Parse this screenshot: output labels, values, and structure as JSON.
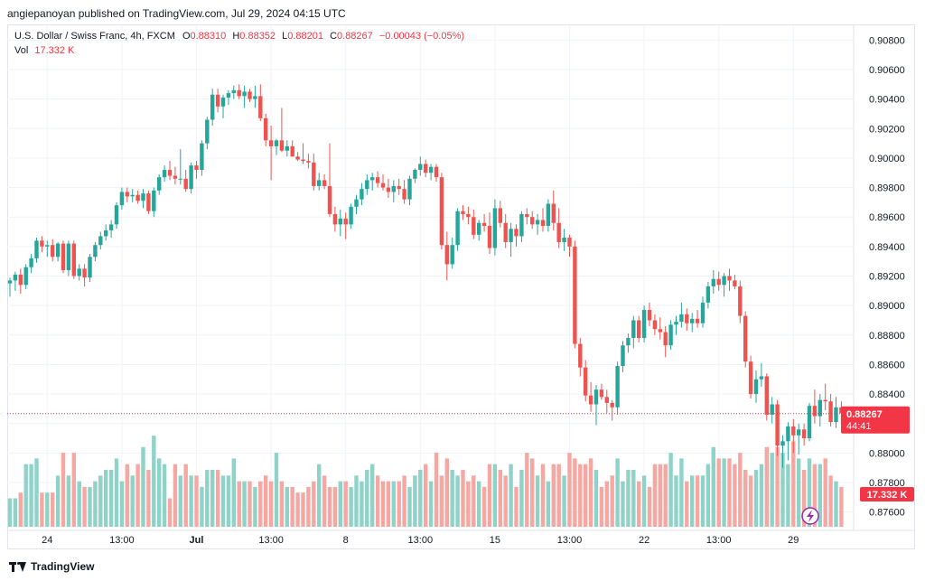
{
  "header": {
    "text": "angiepanoyan published on TradingView.com, Jul 29, 2024 04:15 UTC"
  },
  "legend": {
    "title": "U.S. Dollar / Swiss Franc, 4h, FXCM",
    "o_label": "O",
    "o_value": "0.88310",
    "h_label": "H",
    "h_value": "0.88352",
    "l_label": "L",
    "l_value": "0.88201",
    "c_label": "C",
    "c_value": "0.88267",
    "change": "−0.00043 (−0.05%)",
    "vol_label": "Vol",
    "vol_value": "17.332 K"
  },
  "price_tag": {
    "price": "0.88267",
    "countdown": "44:41",
    "value": 0.88267
  },
  "vol_tag": {
    "text": "17.332 K"
  },
  "footer": {
    "brand": "TradingView"
  },
  "colors": {
    "up": "#26a69a",
    "down": "#ef5350",
    "vol_up": "#8fd2c7",
    "vol_down": "#f6a7a2",
    "grid": "#f0f3fa"
  },
  "chart_data": {
    "type": "candlestick",
    "symbol": "U.S. Dollar / Swiss Franc",
    "interval": "4h",
    "ylim": [
      0.875,
      0.909
    ],
    "y_ticks": [
      "0.90800",
      "0.90600",
      "0.90400",
      "0.90200",
      "0.90000",
      "0.89800",
      "0.89600",
      "0.89400",
      "0.89200",
      "0.89000",
      "0.88800",
      "0.88600",
      "0.88400",
      "0.88200",
      "0.88000",
      "0.87800",
      "0.87600"
    ],
    "x_ticks": [
      {
        "label": "24",
        "bar": 7,
        "bold": false
      },
      {
        "label": "13:00",
        "bar": 21,
        "bold": false
      },
      {
        "label": "Jul",
        "bar": 35,
        "bold": true
      },
      {
        "label": "13:00",
        "bar": 49,
        "bold": false
      },
      {
        "label": "8",
        "bar": 63,
        "bold": false
      },
      {
        "label": "13:00",
        "bar": 77,
        "bold": false
      },
      {
        "label": "15",
        "bar": 91,
        "bold": false
      },
      {
        "label": "13:00",
        "bar": 105,
        "bold": false
      },
      {
        "label": "22",
        "bar": 119,
        "bold": false
      },
      {
        "label": "13:00",
        "bar": 133,
        "bold": false
      },
      {
        "label": "29",
        "bar": 147,
        "bold": false
      }
    ],
    "candles": [
      [
        0.8915,
        0.8919,
        0.8906,
        0.8917
      ],
      [
        0.8917,
        0.8923,
        0.891,
        0.8921
      ],
      [
        0.8921,
        0.8925,
        0.8908,
        0.8914
      ],
      [
        0.8914,
        0.8928,
        0.8911,
        0.8926
      ],
      [
        0.8926,
        0.8935,
        0.8922,
        0.8932
      ],
      [
        0.8932,
        0.8946,
        0.8929,
        0.8944
      ],
      [
        0.8944,
        0.8947,
        0.8936,
        0.894
      ],
      [
        0.894,
        0.8944,
        0.8933,
        0.8941
      ],
      [
        0.8941,
        0.8945,
        0.893,
        0.8933
      ],
      [
        0.8933,
        0.8943,
        0.893,
        0.8942
      ],
      [
        0.8942,
        0.8944,
        0.8922,
        0.8924
      ],
      [
        0.8924,
        0.8944,
        0.892,
        0.8942
      ],
      [
        0.8942,
        0.8944,
        0.8918,
        0.892
      ],
      [
        0.892,
        0.8928,
        0.8917,
        0.8925
      ],
      [
        0.8925,
        0.8928,
        0.8913,
        0.8919
      ],
      [
        0.8919,
        0.8935,
        0.8916,
        0.8933
      ],
      [
        0.8933,
        0.8943,
        0.893,
        0.8941
      ],
      [
        0.8941,
        0.895,
        0.8938,
        0.8947
      ],
      [
        0.8947,
        0.8955,
        0.8944,
        0.8951
      ],
      [
        0.8951,
        0.8958,
        0.8946,
        0.8955
      ],
      [
        0.8955,
        0.897,
        0.8952,
        0.8968
      ],
      [
        0.8968,
        0.898,
        0.8965,
        0.8977
      ],
      [
        0.8977,
        0.898,
        0.897,
        0.8974
      ],
      [
        0.8974,
        0.8979,
        0.897,
        0.8975
      ],
      [
        0.8975,
        0.8978,
        0.8969,
        0.8971
      ],
      [
        0.8971,
        0.8979,
        0.8966,
        0.8976
      ],
      [
        0.8976,
        0.8978,
        0.8962,
        0.8964
      ],
      [
        0.8964,
        0.898,
        0.896,
        0.8978
      ],
      [
        0.8978,
        0.8989,
        0.8975,
        0.8987
      ],
      [
        0.8987,
        0.8995,
        0.8984,
        0.8992
      ],
      [
        0.8992,
        0.8998,
        0.8985,
        0.8988
      ],
      [
        0.8988,
        0.8994,
        0.8982,
        0.8986
      ],
      [
        0.8986,
        0.9006,
        0.8982,
        0.8986
      ],
      [
        0.8986,
        0.8992,
        0.8977,
        0.8979
      ],
      [
        0.8979,
        0.8997,
        0.8976,
        0.8995
      ],
      [
        0.8995,
        0.8998,
        0.8986,
        0.8992
      ],
      [
        0.8992,
        0.9012,
        0.8988,
        0.901
      ],
      [
        0.901,
        0.9028,
        0.9006,
        0.9026
      ],
      [
        0.9026,
        0.9047,
        0.9022,
        0.9043
      ],
      [
        0.9043,
        0.9047,
        0.9031,
        0.9035
      ],
      [
        0.9035,
        0.9043,
        0.9027,
        0.9041
      ],
      [
        0.9041,
        0.9046,
        0.9036,
        0.9044
      ],
      [
        0.9044,
        0.9049,
        0.904,
        0.9046
      ],
      [
        0.9046,
        0.905,
        0.904,
        0.9042
      ],
      [
        0.9042,
        0.9049,
        0.9034,
        0.9045
      ],
      [
        0.9045,
        0.9047,
        0.9038,
        0.904
      ],
      [
        0.904,
        0.9049,
        0.9034,
        0.9042
      ],
      [
        0.9042,
        0.905,
        0.9025,
        0.9027
      ],
      [
        0.9027,
        0.903,
        0.9008,
        0.9012
      ],
      [
        0.9012,
        0.9022,
        0.8985,
        0.9008
      ],
      [
        0.9008,
        0.9013,
        0.9002,
        0.9012
      ],
      [
        0.9012,
        0.9034,
        0.9004,
        0.9005
      ],
      [
        0.9005,
        0.9012,
        0.9001,
        0.9008
      ],
      [
        0.9008,
        0.9012,
        0.9001,
        0.9001
      ],
      [
        0.9001,
        0.9004,
        0.8998,
        0.8999
      ],
      [
        0.8999,
        0.901,
        0.8996,
        0.8998
      ],
      [
        0.8998,
        0.9003,
        0.8993,
        0.8997
      ],
      [
        0.8997,
        0.9003,
        0.8978,
        0.8981
      ],
      [
        0.8981,
        0.899,
        0.8978,
        0.8985
      ],
      [
        0.8985,
        0.8989,
        0.8979,
        0.8981
      ],
      [
        0.8981,
        0.901,
        0.896,
        0.8962
      ],
      [
        0.8962,
        0.8967,
        0.895,
        0.8955
      ],
      [
        0.8955,
        0.8965,
        0.8947,
        0.8959
      ],
      [
        0.8959,
        0.8963,
        0.8945,
        0.8955
      ],
      [
        0.8955,
        0.8969,
        0.8952,
        0.8967
      ],
      [
        0.8967,
        0.8975,
        0.8962,
        0.8972
      ],
      [
        0.8972,
        0.8983,
        0.8968,
        0.8979
      ],
      [
        0.8979,
        0.8989,
        0.8975,
        0.8985
      ],
      [
        0.8985,
        0.899,
        0.8978,
        0.8987
      ],
      [
        0.8987,
        0.8991,
        0.898,
        0.8983
      ],
      [
        0.8983,
        0.8989,
        0.8978,
        0.898
      ],
      [
        0.898,
        0.8986,
        0.8973,
        0.8977
      ],
      [
        0.8977,
        0.8985,
        0.897,
        0.8981
      ],
      [
        0.8981,
        0.8986,
        0.8975,
        0.8979
      ],
      [
        0.8979,
        0.8985,
        0.8969,
        0.8972
      ],
      [
        0.8972,
        0.8988,
        0.8968,
        0.8986
      ],
      [
        0.8986,
        0.8993,
        0.8983,
        0.8992
      ],
      [
        0.8992,
        0.9001,
        0.8988,
        0.8996
      ],
      [
        0.8996,
        0.8999,
        0.8987,
        0.899
      ],
      [
        0.899,
        0.8996,
        0.8985,
        0.8994
      ],
      [
        0.8994,
        0.8996,
        0.8984,
        0.8987
      ],
      [
        0.8987,
        0.899,
        0.8938,
        0.8941
      ],
      [
        0.8941,
        0.895,
        0.8917,
        0.8928
      ],
      [
        0.8928,
        0.8946,
        0.8925,
        0.8941
      ],
      [
        0.8941,
        0.8966,
        0.8937,
        0.8964
      ],
      [
        0.8964,
        0.8968,
        0.8958,
        0.8962
      ],
      [
        0.8962,
        0.8967,
        0.8955,
        0.896
      ],
      [
        0.896,
        0.8965,
        0.8945,
        0.8948
      ],
      [
        0.8948,
        0.8958,
        0.8944,
        0.8956
      ],
      [
        0.8956,
        0.8962,
        0.895,
        0.8954
      ],
      [
        0.8954,
        0.8963,
        0.8935,
        0.8939
      ],
      [
        0.8939,
        0.8972,
        0.8934,
        0.8966
      ],
      [
        0.8966,
        0.8971,
        0.8953,
        0.8956
      ],
      [
        0.8956,
        0.8962,
        0.8939,
        0.8943
      ],
      [
        0.8943,
        0.8956,
        0.8933,
        0.8952
      ],
      [
        0.8952,
        0.8955,
        0.894,
        0.8947
      ],
      [
        0.8947,
        0.8964,
        0.8943,
        0.8962
      ],
      [
        0.8962,
        0.8966,
        0.8955,
        0.896
      ],
      [
        0.896,
        0.8964,
        0.8952,
        0.8955
      ],
      [
        0.8955,
        0.8962,
        0.8948,
        0.8958
      ],
      [
        0.8958,
        0.8966,
        0.895,
        0.8954
      ],
      [
        0.8954,
        0.8972,
        0.895,
        0.8969
      ],
      [
        0.8969,
        0.8978,
        0.8951,
        0.8956
      ],
      [
        0.8956,
        0.8966,
        0.8939,
        0.8943
      ],
      [
        0.8943,
        0.8952,
        0.8937,
        0.8946
      ],
      [
        0.8946,
        0.8948,
        0.8933,
        0.894
      ],
      [
        0.894,
        0.8944,
        0.8871,
        0.8874
      ],
      [
        0.8874,
        0.8878,
        0.8852,
        0.8858
      ],
      [
        0.8858,
        0.8863,
        0.8835,
        0.8839
      ],
      [
        0.8839,
        0.8848,
        0.8828,
        0.8833
      ],
      [
        0.8833,
        0.8846,
        0.8819,
        0.8843
      ],
      [
        0.8843,
        0.8847,
        0.8836,
        0.8838
      ],
      [
        0.8838,
        0.8843,
        0.8827,
        0.8834
      ],
      [
        0.8834,
        0.8836,
        0.8822,
        0.8831
      ],
      [
        0.8831,
        0.8862,
        0.8826,
        0.8859
      ],
      [
        0.8859,
        0.8876,
        0.8855,
        0.8873
      ],
      [
        0.8873,
        0.8881,
        0.8868,
        0.8878
      ],
      [
        0.8878,
        0.8893,
        0.8871,
        0.889
      ],
      [
        0.889,
        0.8893,
        0.8875,
        0.8878
      ],
      [
        0.8878,
        0.89,
        0.8875,
        0.8897
      ],
      [
        0.8897,
        0.8902,
        0.8886,
        0.889
      ],
      [
        0.889,
        0.8894,
        0.888,
        0.8884
      ],
      [
        0.8884,
        0.8892,
        0.8877,
        0.8882
      ],
      [
        0.8882,
        0.8886,
        0.8865,
        0.8873
      ],
      [
        0.8873,
        0.889,
        0.887,
        0.8887
      ],
      [
        0.8887,
        0.8893,
        0.888,
        0.8889
      ],
      [
        0.8889,
        0.8902,
        0.8885,
        0.8894
      ],
      [
        0.8894,
        0.8898,
        0.8883,
        0.8888
      ],
      [
        0.8888,
        0.8895,
        0.8882,
        0.8891
      ],
      [
        0.8891,
        0.8897,
        0.8885,
        0.8888
      ],
      [
        0.8888,
        0.8906,
        0.8885,
        0.8902
      ],
      [
        0.8902,
        0.8916,
        0.8898,
        0.8913
      ],
      [
        0.8913,
        0.8924,
        0.8908,
        0.8918
      ],
      [
        0.8918,
        0.8923,
        0.891,
        0.8914
      ],
      [
        0.8914,
        0.8922,
        0.8906,
        0.892
      ],
      [
        0.892,
        0.8925,
        0.891,
        0.8917
      ],
      [
        0.8917,
        0.8921,
        0.8911,
        0.8913
      ],
      [
        0.8913,
        0.8917,
        0.8888,
        0.8893
      ],
      [
        0.8893,
        0.8896,
        0.8858,
        0.8862
      ],
      [
        0.8862,
        0.8866,
        0.8837,
        0.884
      ],
      [
        0.884,
        0.8856,
        0.8834,
        0.885
      ],
      [
        0.885,
        0.8861,
        0.8845,
        0.8852
      ],
      [
        0.8852,
        0.8854,
        0.8822,
        0.8826
      ],
      [
        0.8826,
        0.8838,
        0.882,
        0.8833
      ],
      [
        0.8833,
        0.8836,
        0.8798,
        0.8805
      ],
      [
        0.8805,
        0.8812,
        0.879,
        0.8808
      ],
      [
        0.8808,
        0.8821,
        0.8795,
        0.8818
      ],
      [
        0.8818,
        0.8823,
        0.88,
        0.8812
      ],
      [
        0.8812,
        0.882,
        0.8799,
        0.8816
      ],
      [
        0.8816,
        0.882,
        0.8805,
        0.881
      ],
      [
        0.881,
        0.8834,
        0.8808,
        0.8832
      ],
      [
        0.8832,
        0.8843,
        0.882,
        0.8825
      ],
      [
        0.8825,
        0.884,
        0.8818,
        0.8836
      ],
      [
        0.8836,
        0.8847,
        0.8829,
        0.8835
      ],
      [
        0.8835,
        0.884,
        0.8818,
        0.8821
      ],
      [
        0.8821,
        0.8838,
        0.8817,
        0.8831
      ],
      [
        0.8831,
        0.8835,
        0.882,
        0.8827
      ]
    ],
    "volume": [
      5,
      5,
      6,
      11,
      11,
      12,
      6,
      6,
      6,
      9,
      13,
      9,
      13,
      8,
      7,
      7,
      8,
      9,
      10,
      10,
      12,
      8,
      11,
      9,
      11,
      14,
      10,
      16,
      12,
      11,
      5,
      11,
      9,
      11,
      9,
      9,
      7,
      10,
      10,
      10,
      9,
      9,
      12,
      8,
      8,
      8,
      7,
      8,
      9,
      8,
      13,
      8,
      7,
      7,
      6,
      6,
      7,
      8,
      11,
      9,
      7,
      7,
      8,
      8,
      7,
      9,
      8,
      10,
      11,
      9,
      8,
      8,
      8,
      8,
      9,
      7,
      9,
      10,
      11,
      8,
      13,
      9,
      12,
      10,
      9,
      10,
      8,
      9,
      8,
      7,
      11,
      11,
      10,
      9,
      11,
      7,
      10,
      13,
      12,
      9,
      11,
      8,
      11,
      11,
      9,
      13,
      12,
      11,
      11,
      12,
      10,
      7,
      8,
      9,
      12,
      8,
      10,
      10,
      8,
      9,
      7,
      11,
      11,
      11,
      13,
      9,
      12,
      8,
      9,
      9,
      9,
      11,
      14,
      12,
      12,
      12,
      11,
      13,
      10,
      9,
      10,
      11,
      14,
      13,
      14,
      13,
      11,
      15,
      12,
      10,
      12,
      11,
      11,
      12,
      9,
      8,
      7
    ]
  }
}
